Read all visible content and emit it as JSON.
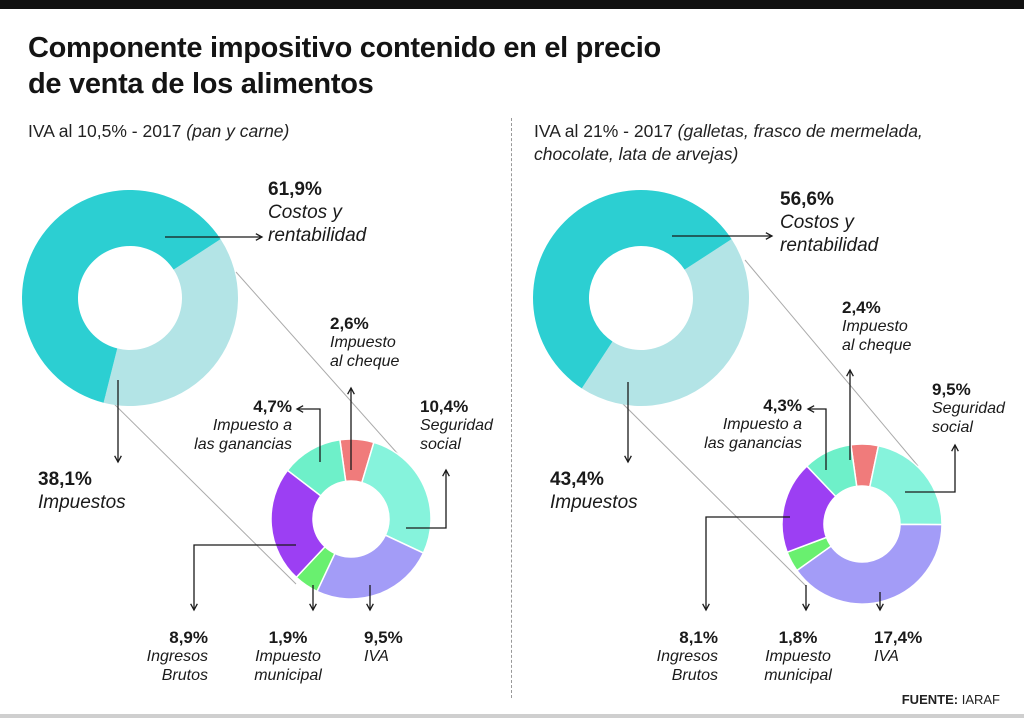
{
  "title_line1": "Componente impositivo contenido en el precio",
  "title_line2": "de venta de los alimentos",
  "source": {
    "label": "FUENTE:",
    "value": "IARAF"
  },
  "colors": {
    "costos": "#2ccfd2",
    "impuestos": "#b3e4e6",
    "cheque": "#f07b7b",
    "seguridad": "#86f3dc",
    "iva": "#a39cf7",
    "municipal": "#69f06f",
    "ingresos": "#9c3ff3",
    "ganancias": "#6ef0c9"
  },
  "chart_data": [
    {
      "type": "pie",
      "subtitle_main": "IVA al 10,5% - 2017",
      "subtitle_note": "(pan y carne)",
      "outer": [
        {
          "key": "costos",
          "pct": "61,9%",
          "name_lines": [
            "Costos y",
            "rentabilidad"
          ],
          "value": 61.9
        },
        {
          "key": "impuestos",
          "pct": "38,1%",
          "name_lines": [
            "Impuestos"
          ],
          "value": 38.1
        }
      ],
      "inner": [
        {
          "key": "cheque",
          "pct": "2,6%",
          "name_lines": [
            "Impuesto",
            "al cheque"
          ],
          "value": 2.6
        },
        {
          "key": "seguridad",
          "pct": "10,4%",
          "name_lines": [
            "Seguridad",
            "social"
          ],
          "value": 10.4
        },
        {
          "key": "iva",
          "pct": "9,5%",
          "name_lines": [
            "IVA"
          ],
          "value": 9.5
        },
        {
          "key": "municipal",
          "pct": "1,9%",
          "name_lines": [
            "Impuesto",
            "municipal"
          ],
          "value": 1.9
        },
        {
          "key": "ingresos",
          "pct": "8,9%",
          "name_lines": [
            "Ingresos",
            "Brutos"
          ],
          "value": 8.9
        },
        {
          "key": "ganancias",
          "pct": "4,7%",
          "name_lines": [
            "Impuesto a",
            "las ganancias"
          ],
          "value": 4.7
        }
      ]
    },
    {
      "type": "pie",
      "subtitle_main": "IVA al 21% - 2017",
      "subtitle_note": "(galletas, frasco de mermelada,",
      "subtitle_note2": "chocolate, lata de arvejas)",
      "outer": [
        {
          "key": "costos",
          "pct": "56,6%",
          "name_lines": [
            "Costos y",
            "rentabilidad"
          ],
          "value": 56.6
        },
        {
          "key": "impuestos",
          "pct": "43,4%",
          "name_lines": [
            "Impuestos"
          ],
          "value": 43.4
        }
      ],
      "inner": [
        {
          "key": "cheque",
          "pct": "2,4%",
          "name_lines": [
            "Impuesto",
            "al cheque"
          ],
          "value": 2.4
        },
        {
          "key": "seguridad",
          "pct": "9,5%",
          "name_lines": [
            "Seguridad",
            "social"
          ],
          "value": 9.5
        },
        {
          "key": "iva",
          "pct": "17,4%",
          "name_lines": [
            "IVA"
          ],
          "value": 17.4
        },
        {
          "key": "municipal",
          "pct": "1,8%",
          "name_lines": [
            "Impuesto",
            "municipal"
          ],
          "value": 1.8
        },
        {
          "key": "ingresos",
          "pct": "8,1%",
          "name_lines": [
            "Ingresos",
            "Brutos"
          ],
          "value": 8.1
        },
        {
          "key": "ganancias",
          "pct": "4,3%",
          "name_lines": [
            "Impuesto a",
            "las ganancias"
          ],
          "value": 4.3
        }
      ]
    }
  ]
}
